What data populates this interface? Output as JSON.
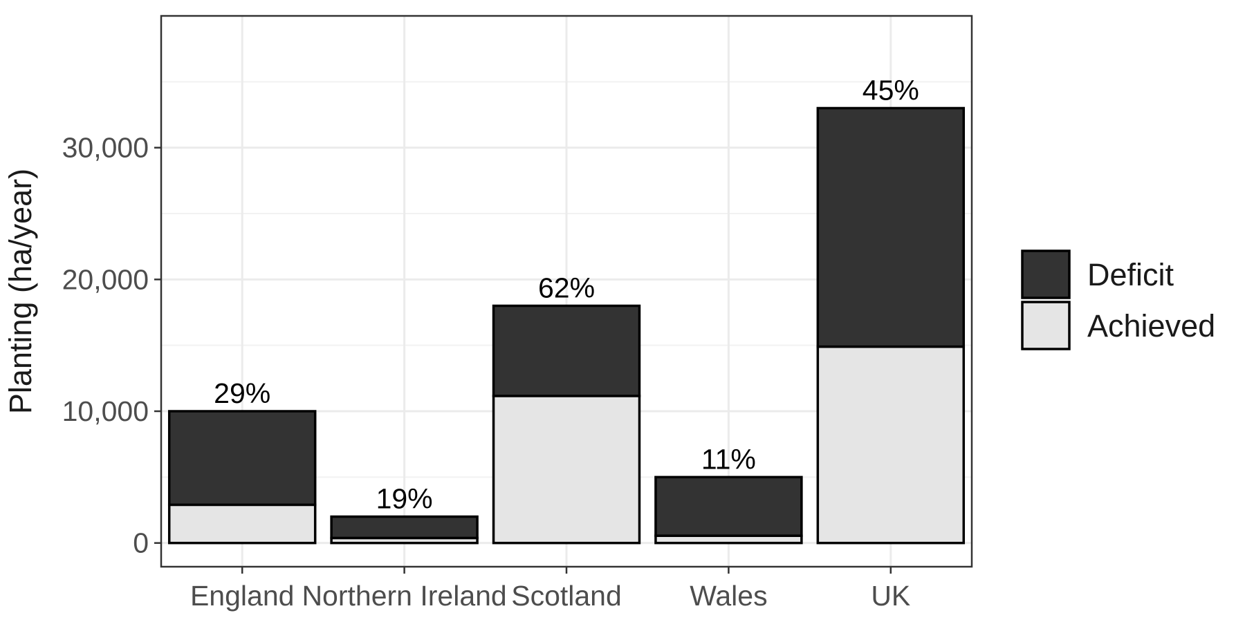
{
  "chart_data": {
    "type": "bar",
    "stacked": true,
    "categories": [
      "England",
      "Northern Ireland",
      "Scotland",
      "Wales",
      "UK"
    ],
    "series": [
      {
        "name": "Achieved",
        "color": "#e5e5e5",
        "values": [
          2900,
          380,
          11160,
          550,
          14900
        ]
      },
      {
        "name": "Deficit",
        "color": "#333333",
        "values": [
          7100,
          1620,
          6840,
          4450,
          18100
        ]
      }
    ],
    "totals": [
      10000,
      2000,
      18000,
      5000,
      33000
    ],
    "data_labels": [
      "29%",
      "19%",
      "62%",
      "11%",
      "45%"
    ],
    "xlabel": "",
    "ylabel": "Planting (ha/year)",
    "ylim": [
      -1800,
      40000
    ],
    "yticks": [
      0,
      10000,
      20000,
      30000
    ],
    "ytick_labels": [
      "0",
      "10,000",
      "20,000",
      "30,000"
    ],
    "grid": true,
    "legend": {
      "placement": "right",
      "entries": [
        "Deficit",
        "Achieved"
      ]
    },
    "colors": {
      "panel_border": "#333333",
      "grid_major": "#ebebeb",
      "grid_minor": "#f2f2f2",
      "bar_outline": "#000000"
    }
  }
}
